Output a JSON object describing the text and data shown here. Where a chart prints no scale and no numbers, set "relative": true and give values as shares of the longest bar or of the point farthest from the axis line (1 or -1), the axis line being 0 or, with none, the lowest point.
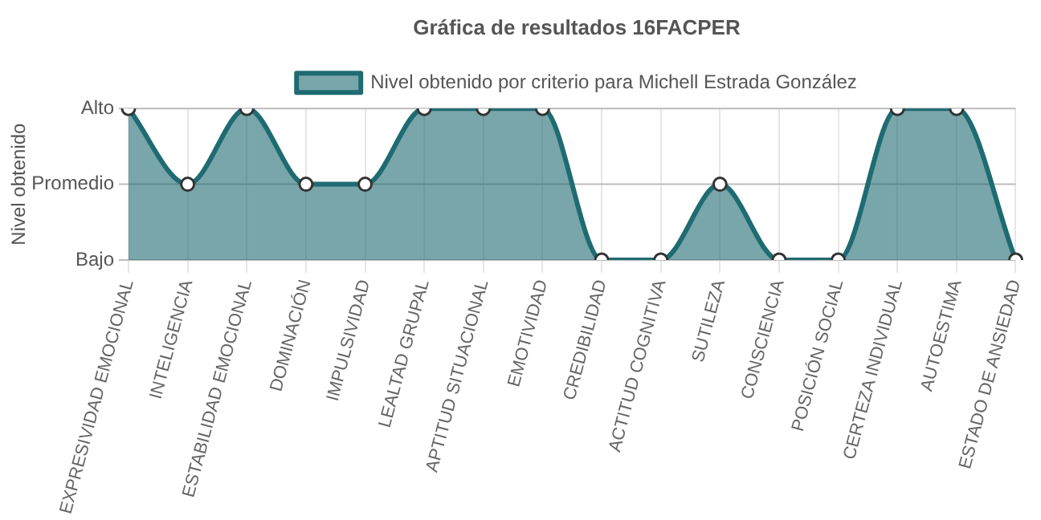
{
  "chart_data": {
    "type": "area",
    "title": "Gráfica de resultados 16FACPER",
    "ylabel": "Nivel obtenido",
    "categories": [
      "EXPRESIVIDAD EMOCIONAL",
      "INTELIGENCIA",
      "ESTABILIDAD EMOCIONAL",
      "DOMINACIÓN",
      "IMPULSIVIDAD",
      "LEALTAD GRUPAL",
      "APTITUD SITUACIONAL",
      "EMOTIVIDAD",
      "CREDIBILIDAD",
      "ACTITUD COGNITIVA",
      "SUTILEZA",
      "CONSCIENCIA",
      "POSICIÓN SOCIAL",
      "CERTEZA INDIVIDUAL",
      "AUTOESTIMA",
      "ESTADO DE ANSIEDAD"
    ],
    "series": [
      {
        "name": "Nivel obtenido por criterio para Michell Estrada González",
        "color": "#1f6b72",
        "values": [
          1,
          0.5,
          1,
          0.5,
          0.5,
          1,
          1,
          1,
          0,
          0,
          0.5,
          0,
          0,
          1,
          1,
          0
        ]
      }
    ],
    "relative": true,
    "ref_lines": [
      {
        "axis": "y",
        "value": 0,
        "label": "Bajo"
      },
      {
        "axis": "y",
        "value": 0.5,
        "label": "Promedio"
      },
      {
        "axis": "y",
        "value": 1,
        "label": "Alto"
      }
    ],
    "grid": true,
    "legend": "top",
    "marker": "circle",
    "line_style": "solid"
  }
}
